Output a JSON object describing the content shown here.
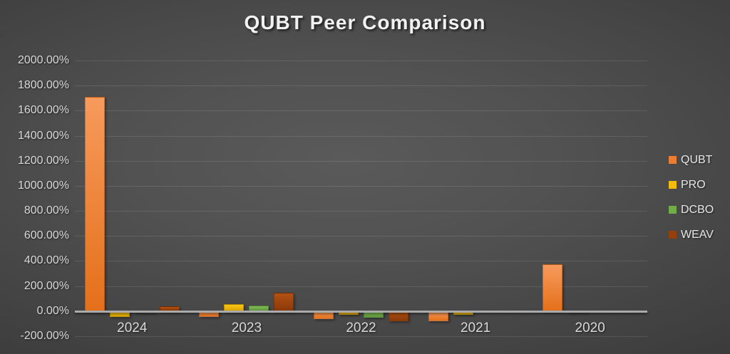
{
  "chart_data": {
    "type": "bar",
    "title": "QUBT Peer Comparison",
    "categories": [
      "2024",
      "2023",
      "2022",
      "2021",
      "2020"
    ],
    "series": [
      {
        "name": "QUBT",
        "legend_color": "#ED7D31",
        "gradient": [
          "#F79A5C",
          "#E4701A"
        ],
        "values": [
          1710,
          -48,
          -65,
          -78,
          375
        ]
      },
      {
        "name": "PRO",
        "legend_color": "#F3BB0E",
        "gradient": [
          "#F8C716",
          "#DFA700"
        ],
        "values": [
          -45,
          57,
          -32,
          -32,
          -12
        ]
      },
      {
        "name": "DCBO",
        "legend_color": "#70AD47",
        "gradient": [
          "#7FBD59",
          "#61993B"
        ],
        "values": [
          -5,
          45,
          -52,
          0,
          0
        ]
      },
      {
        "name": "WEAV",
        "legend_color": "#963F0C",
        "gradient": [
          "#B25112",
          "#8A390A"
        ],
        "values": [
          38,
          145,
          -78,
          0,
          0
        ]
      }
    ],
    "xlabel": "",
    "ylabel": "",
    "ylim": [
      -200,
      2000
    ],
    "ytick_step": 200,
    "ytick_values": [
      2000,
      1800,
      1600,
      1400,
      1200,
      1000,
      800,
      600,
      400,
      200,
      0,
      -200
    ],
    "ytick_labels": [
      "2000.00%",
      "1800.00%",
      "1600.00%",
      "1400.00%",
      "1200.00%",
      "1000.00%",
      "800.00%",
      "600.00%",
      "400.00%",
      "200.00%",
      "0.00%",
      "-200.00%"
    ],
    "grid": true,
    "legend_position": "right",
    "background": "dark-gray-radial-gradient"
  }
}
